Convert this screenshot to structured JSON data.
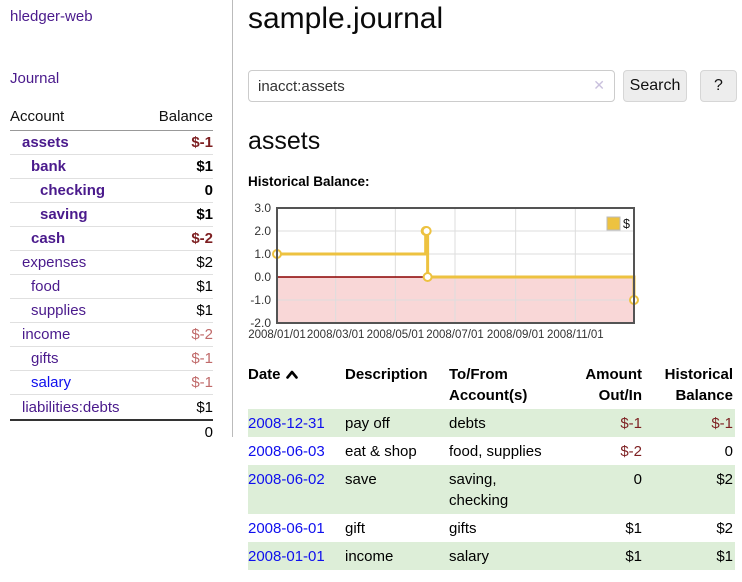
{
  "app": {
    "brand": "hledger-web"
  },
  "sidebar": {
    "nav_journal": "Journal",
    "accounts_table": {
      "header_account": "Account",
      "header_balance": "Balance",
      "rows": [
        {
          "name": "assets",
          "depth": 1,
          "bold": true,
          "link_color": "purple",
          "balance": "$-1",
          "balance_style": "negative-strong"
        },
        {
          "name": "bank",
          "depth": 2,
          "bold": true,
          "link_color": "purple",
          "balance": "$1",
          "balance_style": "normal"
        },
        {
          "name": "checking",
          "depth": 3,
          "bold": true,
          "link_color": "purple",
          "balance": "0",
          "balance_style": "normal"
        },
        {
          "name": "saving",
          "depth": 3,
          "bold": true,
          "link_color": "purple",
          "balance": "$1",
          "balance_style": "normal"
        },
        {
          "name": "cash",
          "depth": 2,
          "bold": true,
          "link_color": "purple",
          "balance": "$-2",
          "balance_style": "negative-strong"
        },
        {
          "name": "expenses",
          "depth": 1,
          "bold": false,
          "link_color": "purple",
          "balance": "$2",
          "balance_style": "normal"
        },
        {
          "name": "food",
          "depth": 2,
          "bold": false,
          "link_color": "purple",
          "balance": "$1",
          "balance_style": "normal"
        },
        {
          "name": "supplies",
          "depth": 2,
          "bold": false,
          "link_color": "purple",
          "balance": "$1",
          "balance_style": "normal"
        },
        {
          "name": "income",
          "depth": 1,
          "bold": false,
          "link_color": "purple",
          "balance": "$-2",
          "balance_style": "negative-soft"
        },
        {
          "name": "gifts",
          "depth": 2,
          "bold": false,
          "link_color": "purple",
          "balance": "$-1",
          "balance_style": "negative-soft"
        },
        {
          "name": "salary",
          "depth": 2,
          "bold": false,
          "link_color": "blue",
          "balance": "$-1",
          "balance_style": "negative-soft"
        },
        {
          "name": "liabilities:debts",
          "depth": 1,
          "bold": false,
          "link_color": "purple",
          "balance": "$1",
          "balance_style": "normal"
        }
      ],
      "total": "0"
    }
  },
  "header": {
    "title": "sample.journal"
  },
  "search": {
    "value": "inacct:assets",
    "clear_icon": "✕",
    "button_label": "Search",
    "help_label": "?"
  },
  "account_page": {
    "heading": "assets",
    "chart_title": "Historical Balance:"
  },
  "chart_data": {
    "type": "line",
    "step": true,
    "title": "Historical Balance:",
    "legend": "$",
    "legend_position": "top-right",
    "x_domain": [
      "2008-01-01",
      "2008-12-31"
    ],
    "ylim": [
      -2,
      3
    ],
    "y_ticks": [
      "3.0",
      "2.0",
      "1.0",
      "0.0",
      "-1.0",
      "-2.0"
    ],
    "x_ticks": [
      "2008/01/01",
      "2008/03/01",
      "2008/05/01",
      "2008/07/01",
      "2008/09/01",
      "2008/11/01"
    ],
    "grid": true,
    "series": [
      {
        "name": "$",
        "color": "#edc240",
        "points": [
          [
            "2008-01-01",
            1
          ],
          [
            "2008-06-01",
            2
          ],
          [
            "2008-06-02",
            2
          ],
          [
            "2008-06-03",
            0
          ],
          [
            "2008-12-31",
            -1
          ]
        ]
      }
    ],
    "negative_region_color": "#f9d7d7",
    "zero_line_color": "#8b0000",
    "border_color": "#545454",
    "grid_color": "#dddddd"
  },
  "transactions": {
    "headers": {
      "date": "Date",
      "description": "Description",
      "accounts": "To/From Account(s)",
      "amount": "Amount Out/In",
      "balance": "Historical Balance"
    },
    "rows": [
      {
        "date": "2008-12-31",
        "description": "pay off",
        "accounts": "debts",
        "amount": "$-1",
        "amount_negative": true,
        "balance": "$-1",
        "balance_negative": true
      },
      {
        "date": "2008-06-03",
        "description": "eat & shop",
        "accounts": "food, supplies",
        "amount": "$-2",
        "amount_negative": true,
        "balance": "0",
        "balance_negative": false
      },
      {
        "date": "2008-06-02",
        "description": "save",
        "accounts": "saving, checking",
        "amount": "0",
        "amount_negative": false,
        "balance": "$2",
        "balance_negative": false
      },
      {
        "date": "2008-06-01",
        "description": "gift",
        "accounts": "gifts",
        "amount": "$1",
        "amount_negative": false,
        "balance": "$2",
        "balance_negative": false
      },
      {
        "date": "2008-01-01",
        "description": "income",
        "accounts": "salary",
        "amount": "$1",
        "amount_negative": false,
        "balance": "$1",
        "balance_negative": false
      }
    ]
  },
  "colors": {
    "link_purple": "#4a1a8c",
    "link_blue": "#0f0fee",
    "negative_strong": "#7d1f21",
    "negative_soft": "#c06a6a",
    "row_green": "#ddeed8",
    "chart_gold": "#edc240",
    "chart_pink": "#f9d7d7",
    "chart_zero_line": "#8b0000"
  }
}
